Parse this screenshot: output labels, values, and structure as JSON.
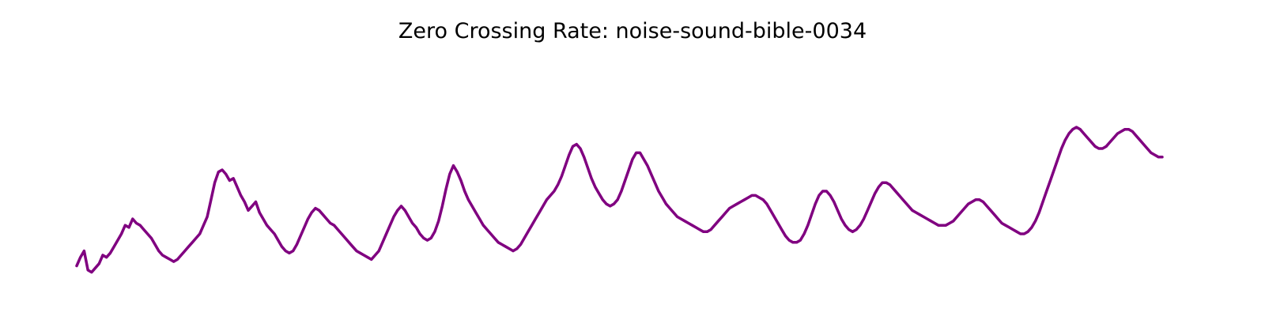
{
  "chart_data": {
    "type": "line",
    "title": "Zero Crossing Rate: noise-sound-bible-0034",
    "xlabel": "",
    "ylabel": "",
    "axes_visible": false,
    "grid": false,
    "series": [
      {
        "color": "#800080",
        "values": [
          0.05,
          0.09,
          0.12,
          0.03,
          0.02,
          0.04,
          0.06,
          0.1,
          0.09,
          0.11,
          0.14,
          0.17,
          0.2,
          0.24,
          0.23,
          0.27,
          0.25,
          0.24,
          0.22,
          0.2,
          0.18,
          0.15,
          0.12,
          0.1,
          0.09,
          0.08,
          0.07,
          0.08,
          0.1,
          0.12,
          0.14,
          0.16,
          0.18,
          0.2,
          0.24,
          0.28,
          0.36,
          0.44,
          0.49,
          0.5,
          0.48,
          0.45,
          0.46,
          0.42,
          0.38,
          0.35,
          0.31,
          0.33,
          0.35,
          0.3,
          0.27,
          0.24,
          0.22,
          0.2,
          0.17,
          0.14,
          0.12,
          0.11,
          0.12,
          0.15,
          0.19,
          0.23,
          0.27,
          0.3,
          0.32,
          0.31,
          0.29,
          0.27,
          0.25,
          0.24,
          0.22,
          0.2,
          0.18,
          0.16,
          0.14,
          0.12,
          0.11,
          0.1,
          0.09,
          0.08,
          0.1,
          0.12,
          0.16,
          0.2,
          0.24,
          0.28,
          0.31,
          0.33,
          0.31,
          0.28,
          0.25,
          0.23,
          0.2,
          0.18,
          0.17,
          0.18,
          0.21,
          0.26,
          0.33,
          0.41,
          0.48,
          0.52,
          0.49,
          0.45,
          0.4,
          0.36,
          0.33,
          0.3,
          0.27,
          0.24,
          0.22,
          0.2,
          0.18,
          0.16,
          0.15,
          0.14,
          0.13,
          0.12,
          0.13,
          0.15,
          0.18,
          0.21,
          0.24,
          0.27,
          0.3,
          0.33,
          0.36,
          0.38,
          0.4,
          0.43,
          0.47,
          0.52,
          0.57,
          0.61,
          0.62,
          0.6,
          0.56,
          0.51,
          0.46,
          0.42,
          0.39,
          0.36,
          0.34,
          0.33,
          0.34,
          0.36,
          0.4,
          0.45,
          0.5,
          0.55,
          0.58,
          0.58,
          0.55,
          0.52,
          0.48,
          0.44,
          0.4,
          0.37,
          0.34,
          0.32,
          0.3,
          0.28,
          0.27,
          0.26,
          0.25,
          0.24,
          0.23,
          0.22,
          0.21,
          0.21,
          0.22,
          0.24,
          0.26,
          0.28,
          0.3,
          0.32,
          0.33,
          0.34,
          0.35,
          0.36,
          0.37,
          0.38,
          0.38,
          0.37,
          0.36,
          0.34,
          0.31,
          0.28,
          0.25,
          0.22,
          0.19,
          0.17,
          0.16,
          0.16,
          0.17,
          0.2,
          0.24,
          0.29,
          0.34,
          0.38,
          0.4,
          0.4,
          0.38,
          0.35,
          0.31,
          0.27,
          0.24,
          0.22,
          0.21,
          0.22,
          0.24,
          0.27,
          0.31,
          0.35,
          0.39,
          0.42,
          0.44,
          0.44,
          0.43,
          0.41,
          0.39,
          0.37,
          0.35,
          0.33,
          0.31,
          0.3,
          0.29,
          0.28,
          0.27,
          0.26,
          0.25,
          0.24,
          0.24,
          0.24,
          0.25,
          0.26,
          0.28,
          0.3,
          0.32,
          0.34,
          0.35,
          0.36,
          0.36,
          0.35,
          0.33,
          0.31,
          0.29,
          0.27,
          0.25,
          0.24,
          0.23,
          0.22,
          0.21,
          0.2,
          0.2,
          0.21,
          0.23,
          0.26,
          0.3,
          0.35,
          0.4,
          0.45,
          0.5,
          0.55,
          0.6,
          0.64,
          0.67,
          0.69,
          0.7,
          0.69,
          0.67,
          0.65,
          0.63,
          0.61,
          0.6,
          0.6,
          0.61,
          0.63,
          0.65,
          0.67,
          0.68,
          0.69,
          0.69,
          0.68,
          0.66,
          0.64,
          0.62,
          0.6,
          0.58,
          0.57,
          0.56,
          0.56
        ]
      }
    ]
  }
}
